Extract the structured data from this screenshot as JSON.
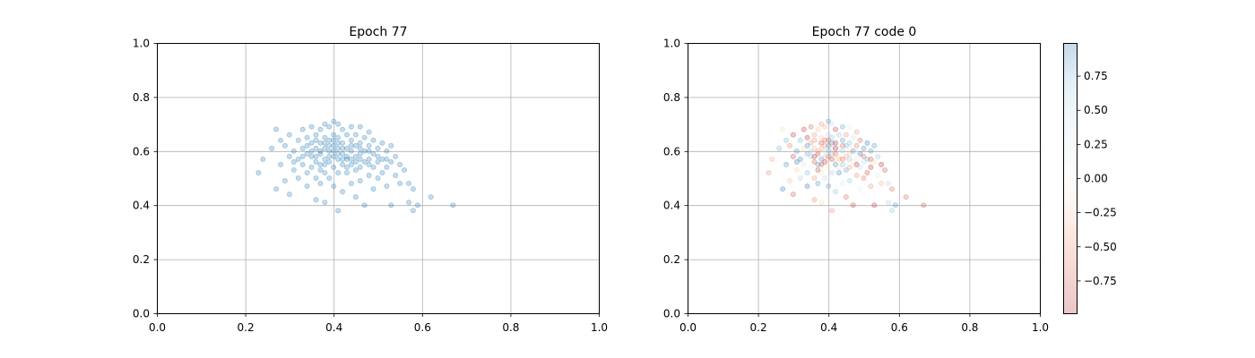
{
  "chart_data": [
    {
      "type": "scatter",
      "title": "Epoch 77",
      "xlabel": "",
      "ylabel": "",
      "xlim": [
        0.0,
        1.0
      ],
      "ylim": [
        0.0,
        1.0
      ],
      "xticks": [
        "0.0",
        "0.2",
        "0.4",
        "0.6",
        "0.8",
        "1.0"
      ],
      "yticks": [
        "0.0",
        "0.2",
        "0.4",
        "0.6",
        "0.8",
        "1.0"
      ],
      "grid": true,
      "point_color": "#1f77b4",
      "point_alpha": 0.25,
      "approx_point_count": 400,
      "points": [
        [
          0.23,
          0.52
        ],
        [
          0.24,
          0.57
        ],
        [
          0.26,
          0.61
        ],
        [
          0.27,
          0.68
        ],
        [
          0.27,
          0.46
        ],
        [
          0.28,
          0.64
        ],
        [
          0.28,
          0.55
        ],
        [
          0.29,
          0.62
        ],
        [
          0.29,
          0.49
        ],
        [
          0.3,
          0.58
        ],
        [
          0.3,
          0.66
        ],
        [
          0.3,
          0.44
        ],
        [
          0.31,
          0.6
        ],
        [
          0.31,
          0.53
        ],
        [
          0.32,
          0.64
        ],
        [
          0.32,
          0.57
        ],
        [
          0.32,
          0.5
        ],
        [
          0.33,
          0.68
        ],
        [
          0.33,
          0.61
        ],
        [
          0.33,
          0.55
        ],
        [
          0.34,
          0.65
        ],
        [
          0.34,
          0.59
        ],
        [
          0.34,
          0.52
        ],
        [
          0.34,
          0.47
        ],
        [
          0.35,
          0.69
        ],
        [
          0.35,
          0.63
        ],
        [
          0.35,
          0.58
        ],
        [
          0.35,
          0.54
        ],
        [
          0.36,
          0.66
        ],
        [
          0.36,
          0.61
        ],
        [
          0.36,
          0.56
        ],
        [
          0.36,
          0.5
        ],
        [
          0.36,
          0.42
        ],
        [
          0.37,
          0.68
        ],
        [
          0.37,
          0.63
        ],
        [
          0.37,
          0.59
        ],
        [
          0.37,
          0.55
        ],
        [
          0.37,
          0.48
        ],
        [
          0.38,
          0.7
        ],
        [
          0.38,
          0.65
        ],
        [
          0.38,
          0.61
        ],
        [
          0.38,
          0.57
        ],
        [
          0.38,
          0.52
        ],
        [
          0.38,
          0.41
        ],
        [
          0.39,
          0.69
        ],
        [
          0.39,
          0.64
        ],
        [
          0.39,
          0.6
        ],
        [
          0.39,
          0.56
        ],
        [
          0.39,
          0.5
        ],
        [
          0.4,
          0.71
        ],
        [
          0.4,
          0.66
        ],
        [
          0.4,
          0.62
        ],
        [
          0.4,
          0.58
        ],
        [
          0.4,
          0.54
        ],
        [
          0.4,
          0.47
        ],
        [
          0.41,
          0.7
        ],
        [
          0.41,
          0.65
        ],
        [
          0.41,
          0.61
        ],
        [
          0.41,
          0.57
        ],
        [
          0.41,
          0.52
        ],
        [
          0.41,
          0.38
        ],
        [
          0.42,
          0.68
        ],
        [
          0.42,
          0.63
        ],
        [
          0.42,
          0.59
        ],
        [
          0.42,
          0.55
        ],
        [
          0.42,
          0.45
        ],
        [
          0.43,
          0.66
        ],
        [
          0.43,
          0.61
        ],
        [
          0.43,
          0.57
        ],
        [
          0.43,
          0.52
        ],
        [
          0.44,
          0.69
        ],
        [
          0.44,
          0.64
        ],
        [
          0.44,
          0.6
        ],
        [
          0.44,
          0.55
        ],
        [
          0.44,
          0.48
        ],
        [
          0.45,
          0.66
        ],
        [
          0.45,
          0.62
        ],
        [
          0.45,
          0.58
        ],
        [
          0.45,
          0.53
        ],
        [
          0.45,
          0.43
        ],
        [
          0.46,
          0.69
        ],
        [
          0.46,
          0.63
        ],
        [
          0.46,
          0.59
        ],
        [
          0.46,
          0.54
        ],
        [
          0.46,
          0.49
        ],
        [
          0.47,
          0.65
        ],
        [
          0.47,
          0.6
        ],
        [
          0.47,
          0.56
        ],
        [
          0.47,
          0.4
        ],
        [
          0.48,
          0.67
        ],
        [
          0.48,
          0.62
        ],
        [
          0.48,
          0.57
        ],
        [
          0.48,
          0.51
        ],
        [
          0.49,
          0.64
        ],
        [
          0.49,
          0.59
        ],
        [
          0.49,
          0.54
        ],
        [
          0.49,
          0.46
        ],
        [
          0.5,
          0.61
        ],
        [
          0.5,
          0.56
        ],
        [
          0.5,
          0.5
        ],
        [
          0.51,
          0.63
        ],
        [
          0.51,
          0.57
        ],
        [
          0.51,
          0.52
        ],
        [
          0.52,
          0.6
        ],
        [
          0.52,
          0.54
        ],
        [
          0.52,
          0.47
        ],
        [
          0.53,
          0.62
        ],
        [
          0.53,
          0.56
        ],
        [
          0.53,
          0.4
        ],
        [
          0.54,
          0.58
        ],
        [
          0.54,
          0.51
        ],
        [
          0.55,
          0.55
        ],
        [
          0.55,
          0.48
        ],
        [
          0.56,
          0.53
        ],
        [
          0.57,
          0.48
        ],
        [
          0.57,
          0.41
        ],
        [
          0.58,
          0.38
        ],
        [
          0.58,
          0.46
        ],
        [
          0.59,
          0.4
        ],
        [
          0.62,
          0.43
        ],
        [
          0.67,
          0.4
        ],
        [
          0.35,
          0.6
        ],
        [
          0.37,
          0.6
        ],
        [
          0.39,
          0.62
        ],
        [
          0.41,
          0.59
        ],
        [
          0.43,
          0.58
        ],
        [
          0.45,
          0.56
        ],
        [
          0.36,
          0.58
        ],
        [
          0.38,
          0.55
        ],
        [
          0.4,
          0.6
        ],
        [
          0.42,
          0.57
        ],
        [
          0.44,
          0.57
        ],
        [
          0.46,
          0.57
        ],
        [
          0.39,
          0.58
        ],
        [
          0.41,
          0.63
        ],
        [
          0.43,
          0.54
        ],
        [
          0.37,
          0.53
        ],
        [
          0.33,
          0.58
        ],
        [
          0.31,
          0.56
        ],
        [
          0.48,
          0.55
        ],
        [
          0.5,
          0.58
        ],
        [
          0.4,
          0.64
        ],
        [
          0.42,
          0.61
        ],
        [
          0.38,
          0.63
        ],
        [
          0.44,
          0.62
        ],
        [
          0.36,
          0.64
        ],
        [
          0.34,
          0.62
        ],
        [
          0.46,
          0.61
        ],
        [
          0.48,
          0.6
        ],
        [
          0.52,
          0.57
        ]
      ]
    },
    {
      "type": "scatter",
      "title": "Epoch 77 code 0",
      "xlabel": "",
      "ylabel": "",
      "xlim": [
        0.0,
        1.0
      ],
      "ylim": [
        0.0,
        1.0
      ],
      "xticks": [
        "0.0",
        "0.2",
        "0.4",
        "0.6",
        "0.8",
        "1.0"
      ],
      "yticks": [
        "0.0",
        "0.2",
        "0.4",
        "0.6",
        "0.8",
        "1.0"
      ],
      "grid": true,
      "colormap": "RdBu",
      "point_alpha": 0.25,
      "color_range": [
        -0.99,
        0.99
      ],
      "colorbar_ticks": [
        "0.75",
        "0.50",
        "0.25",
        "0.00",
        "−0.25",
        "−0.50",
        "−0.75"
      ],
      "colorbar_tick_values": [
        0.75,
        0.5,
        0.25,
        0.0,
        -0.25,
        -0.5,
        -0.75
      ]
    }
  ]
}
